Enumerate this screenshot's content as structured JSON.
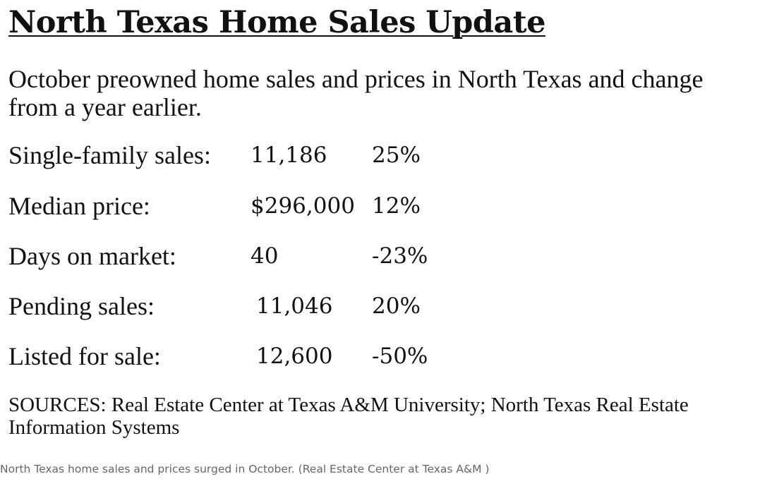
{
  "title": "North Texas Home Sales Update",
  "subtitle": "October preowned home sales and prices in North Texas and change from a year earlier.",
  "stats": [
    {
      "label": "Single-family sales:",
      "value": "11,186",
      "change": "25%"
    },
    {
      "label": "Median price:",
      "value": "$296,000",
      "change": "12%"
    },
    {
      "label": "Days on market:",
      "value": "40",
      "change": "-23%"
    },
    {
      "label": "Pending sales:",
      "value": "11,046",
      "change": "20%"
    },
    {
      "label": "Listed for sale:",
      "value": "12,600",
      "change": "-50%"
    }
  ],
  "sources": "SOURCES: Real Estate Center at Texas A&M University; North Texas Real Estate Information Systems",
  "caption": "North Texas home sales and prices surged in October. (Real Estate Center at Texas A&M )"
}
